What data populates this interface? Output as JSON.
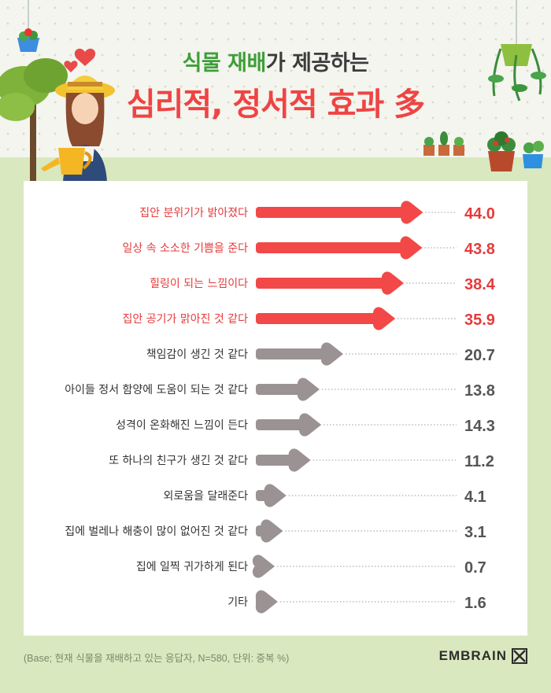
{
  "header": {
    "title_part1": "식물 재배",
    "title_part2": "가 제공하는",
    "title_line2": "심리적, 정서적 효과 多"
  },
  "colors": {
    "highlight": "#f24848",
    "muted": "#9a9293",
    "title_green": "#3f9e3a"
  },
  "chart_data": {
    "type": "bar",
    "orientation": "horizontal",
    "categories": [
      "집안 분위기가 밝아졌다",
      "일상 속 소소한 기쁨을 준다",
      "힐링이 되는 느낌이다",
      "집안 공기가 맑아진 것 같다",
      "책임감이 생긴 것 같다",
      "아이들 정서 함양에 도움이 되는 것 같다",
      "성격이 온화해진 느낌이 든다",
      "또 하나의 친구가 생긴 것 같다",
      "외로움을 달래준다",
      "집에 벌레나 해충이 많이 없어진 것 같다",
      "집에 일찍 귀가하게 된다",
      "기타"
    ],
    "values": [
      44.0,
      43.8,
      38.4,
      35.9,
      20.7,
      13.8,
      14.3,
      11.2,
      4.1,
      3.1,
      0.7,
      1.6
    ],
    "value_labels": [
      "44.0",
      "43.8",
      "38.4",
      "35.9",
      "20.7",
      "13.8",
      "14.3",
      "11.2",
      "4.1",
      "3.1",
      "0.7",
      "1.6"
    ],
    "highlighted_count": 4,
    "xlim": [
      0,
      44
    ]
  },
  "footer": {
    "note": "(Base; 현재 식물을  재배하고 있는 응답자, N=580, 단위: 중복 %)",
    "brand": "EMBRAIN"
  },
  "icons": [
    "heart-icon",
    "plant-pot-icon",
    "gardener-illustration",
    "embrain-logo-icon"
  ]
}
